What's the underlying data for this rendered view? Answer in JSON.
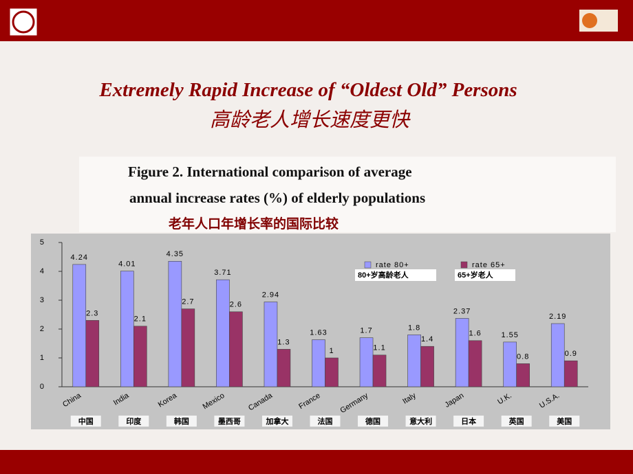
{
  "header": {
    "title": "Extremely Rapid Increase of “Oldest Old” Persons",
    "subtitle": "高龄老人增长速度更快"
  },
  "chart_data": {
    "type": "bar",
    "title": [
      "Figure 2. International comparison of average",
      "annual increase rates (%) of elderly populations"
    ],
    "subtitle": "老年人口年增长率的国际比较",
    "categories": [
      "China",
      "India",
      "Korea",
      "Mexico",
      "Canada",
      "France",
      "Germany",
      "Italy",
      "Japan",
      "U.K.",
      "U.S.A."
    ],
    "categories_zh": [
      "中国",
      "印度",
      "韩国",
      "墨西哥",
      "加拿大",
      "法国",
      "德国",
      "意大利",
      "日本",
      "英国",
      "美国"
    ],
    "series": [
      {
        "name": "rate 80+",
        "name_zh": "80+岁高龄老人",
        "color": "#9999ff",
        "values": [
          4.24,
          4.01,
          4.35,
          3.71,
          2.94,
          1.63,
          1.7,
          1.8,
          2.37,
          1.55,
          2.19
        ]
      },
      {
        "name": "rate 65+",
        "name_zh": "65+岁老人",
        "color": "#993366",
        "values": [
          2.3,
          2.1,
          2.7,
          2.6,
          1.3,
          1,
          1.1,
          1.4,
          1.6,
          0.8,
          0.9
        ]
      }
    ],
    "ylim": [
      0,
      5
    ],
    "yticks": [
      0,
      1,
      2,
      3,
      4,
      5
    ],
    "grid": false
  }
}
